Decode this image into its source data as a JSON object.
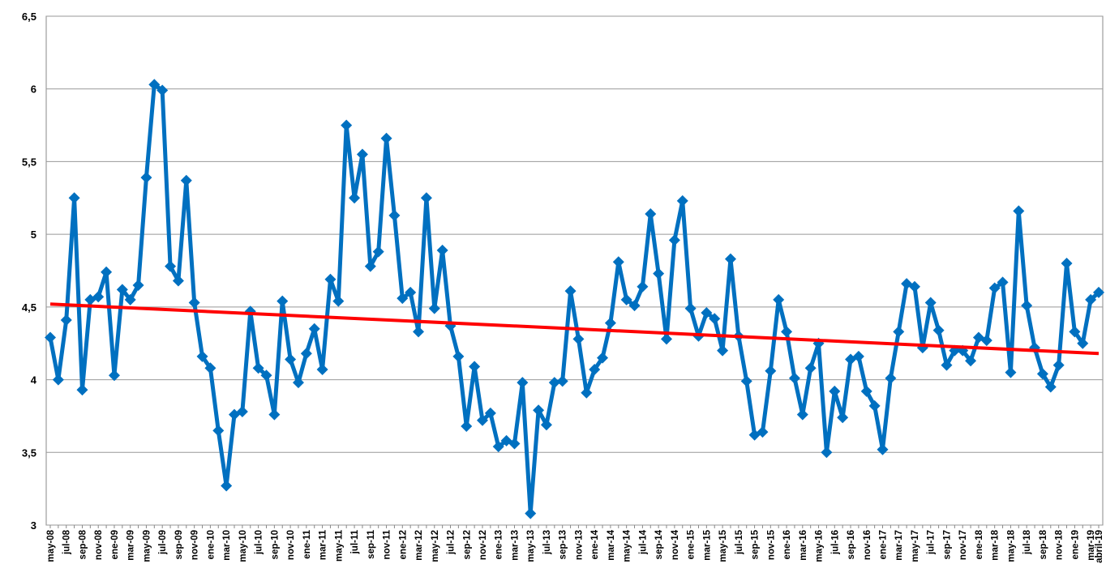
{
  "chart_data": {
    "type": "line",
    "categories": [
      "may-08",
      null,
      "jul-08",
      null,
      "sep-08",
      null,
      "nov-08",
      null,
      "ene-09",
      null,
      "mar-09",
      null,
      "may-09",
      null,
      "jul-09",
      null,
      "sep-09",
      null,
      "nov-09",
      null,
      "ene-10",
      null,
      "mar-10",
      null,
      "may-10",
      null,
      "jul-10",
      null,
      "sep-10",
      null,
      "nov-10",
      null,
      "ene-11",
      null,
      "mar-11",
      null,
      "may-11",
      null,
      "jul-11",
      null,
      "sep-11",
      null,
      "nov-11",
      null,
      "ene-12",
      null,
      "mar-12",
      null,
      "may-12",
      null,
      "jul-12",
      null,
      "sep-12",
      null,
      "nov-12",
      null,
      "ene-13",
      null,
      "mar-13",
      null,
      "may-13",
      null,
      "jul-13",
      null,
      "sep-13",
      null,
      "nov-13",
      null,
      "ene-14",
      null,
      "mar-14",
      null,
      "may-14",
      null,
      "jul-14",
      null,
      "sep-14",
      null,
      "nov-14",
      null,
      "ene-15",
      null,
      "mar-15",
      null,
      "may-15",
      null,
      "jul-15",
      null,
      "sep-15",
      null,
      "nov-15",
      null,
      "ene-16",
      null,
      "mar-16",
      null,
      "may-16",
      null,
      "jul-16",
      null,
      "sep-16",
      null,
      "nov-16",
      null,
      "ene-17",
      null,
      "mar-17",
      null,
      "may-17",
      null,
      "jul-17",
      null,
      "sep-17",
      null,
      "nov-17",
      null,
      "ene-18",
      null,
      "mar-18",
      null,
      "may-18",
      null,
      "jul-18",
      null,
      "sep-18",
      null,
      "nov-18",
      null,
      "ene-19",
      null,
      "mar-19",
      "abril-19"
    ],
    "series": [
      {
        "color": "#0070c0",
        "values": [
          4.29,
          4.0,
          4.41,
          5.25,
          3.93,
          4.55,
          4.57,
          4.74,
          4.03,
          4.62,
          4.55,
          4.65,
          5.39,
          6.03,
          5.99,
          4.78,
          4.68,
          5.37,
          4.53,
          4.16,
          4.08,
          3.65,
          3.27,
          3.76,
          3.78,
          4.47,
          4.08,
          4.03,
          3.76,
          4.54,
          4.14,
          3.98,
          4.18,
          4.35,
          4.07,
          4.69,
          4.54,
          5.75,
          5.25,
          5.55,
          4.78,
          4.88,
          5.66,
          5.13,
          4.56,
          4.6,
          4.33,
          5.25,
          4.49,
          4.89,
          4.37,
          4.16,
          3.68,
          4.09,
          3.72,
          3.77,
          3.54,
          3.58,
          3.56,
          3.98,
          3.08,
          3.79,
          3.69,
          3.98,
          3.99,
          4.61,
          4.28,
          3.91,
          4.07,
          4.15,
          4.39,
          4.81,
          4.55,
          4.51,
          4.64,
          5.14,
          4.73,
          4.28,
          4.96,
          5.23,
          4.49,
          4.3,
          4.46,
          4.42,
          4.2,
          4.83,
          4.3,
          3.99,
          3.62,
          3.64,
          4.06,
          4.55,
          4.33,
          4.01,
          3.76,
          4.08,
          4.25,
          3.5,
          3.92,
          3.74,
          4.14,
          4.16,
          3.92,
          3.82,
          3.52,
          4.01,
          4.33,
          4.66,
          4.64,
          4.22,
          4.53,
          4.34,
          4.1,
          4.2,
          4.2,
          4.13,
          4.29,
          4.27,
          4.63,
          4.67,
          4.05,
          5.16,
          4.51,
          4.22,
          4.04,
          3.95,
          4.1,
          4.8,
          4.33,
          4.25,
          4.55,
          4.6
        ]
      }
    ],
    "trend": {
      "color": "#ff0000",
      "values": [
        4.52,
        4.18
      ]
    },
    "ylim": [
      3,
      6.5
    ],
    "yticks": [
      3,
      {
        "value": 3.5,
        "label": "3,5"
      },
      4,
      {
        "value": 4.5,
        "label": "4,5"
      },
      5,
      {
        "value": 5.5,
        "label": "5,5"
      },
      6,
      {
        "value": 6.5,
        "label": "6,5"
      }
    ],
    "grid": true
  }
}
